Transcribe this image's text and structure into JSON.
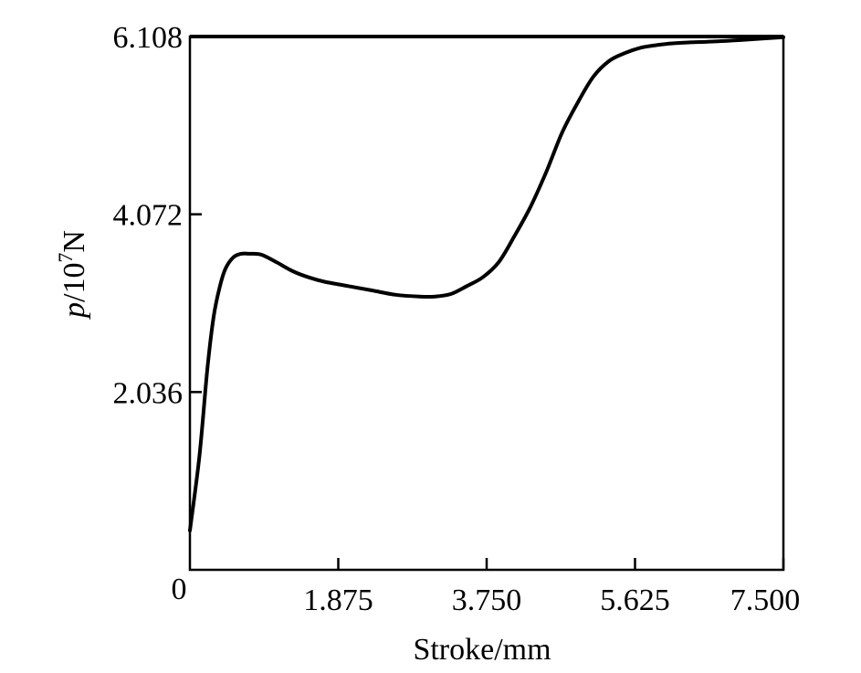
{
  "chart_data": {
    "type": "line",
    "xlabel": "Stroke/mm",
    "ylabel_italic": "p",
    "ylabel_rest": "/10",
    "ylabel_exp": "7",
    "ylabel_unit": "N",
    "xlim": [
      0,
      7.5
    ],
    "ylim": [
      0,
      6.108
    ],
    "xticks": [
      1.875,
      3.75,
      5.625,
      7.5
    ],
    "xtick_labels": [
      "1.875",
      "3.750",
      "5.625",
      "7.500"
    ],
    "yticks": [
      2.036,
      4.072,
      6.108
    ],
    "ytick_labels": [
      "2.036",
      "4.072",
      "6.108"
    ],
    "origin_label": "0",
    "grid": false,
    "series": [
      {
        "x": [
          0.0,
          0.12,
          0.22,
          0.3,
          0.38,
          0.45,
          0.55,
          0.65,
          0.75,
          0.9,
          1.1,
          1.3,
          1.5,
          1.7,
          2.0,
          2.3,
          2.6,
          2.9,
          3.1,
          3.3,
          3.5,
          3.7,
          3.9,
          4.1,
          4.3,
          4.5,
          4.7,
          4.9,
          5.1,
          5.3,
          5.5,
          5.7,
          5.9,
          6.1,
          6.3,
          6.6,
          7.0,
          7.5
        ],
        "y": [
          0.45,
          1.3,
          2.3,
          2.9,
          3.25,
          3.45,
          3.58,
          3.62,
          3.62,
          3.61,
          3.52,
          3.42,
          3.35,
          3.3,
          3.25,
          3.2,
          3.15,
          3.13,
          3.13,
          3.16,
          3.25,
          3.35,
          3.52,
          3.82,
          4.15,
          4.55,
          5.0,
          5.35,
          5.65,
          5.83,
          5.92,
          5.98,
          6.01,
          6.03,
          6.04,
          6.05,
          6.07,
          6.1
        ]
      }
    ]
  }
}
